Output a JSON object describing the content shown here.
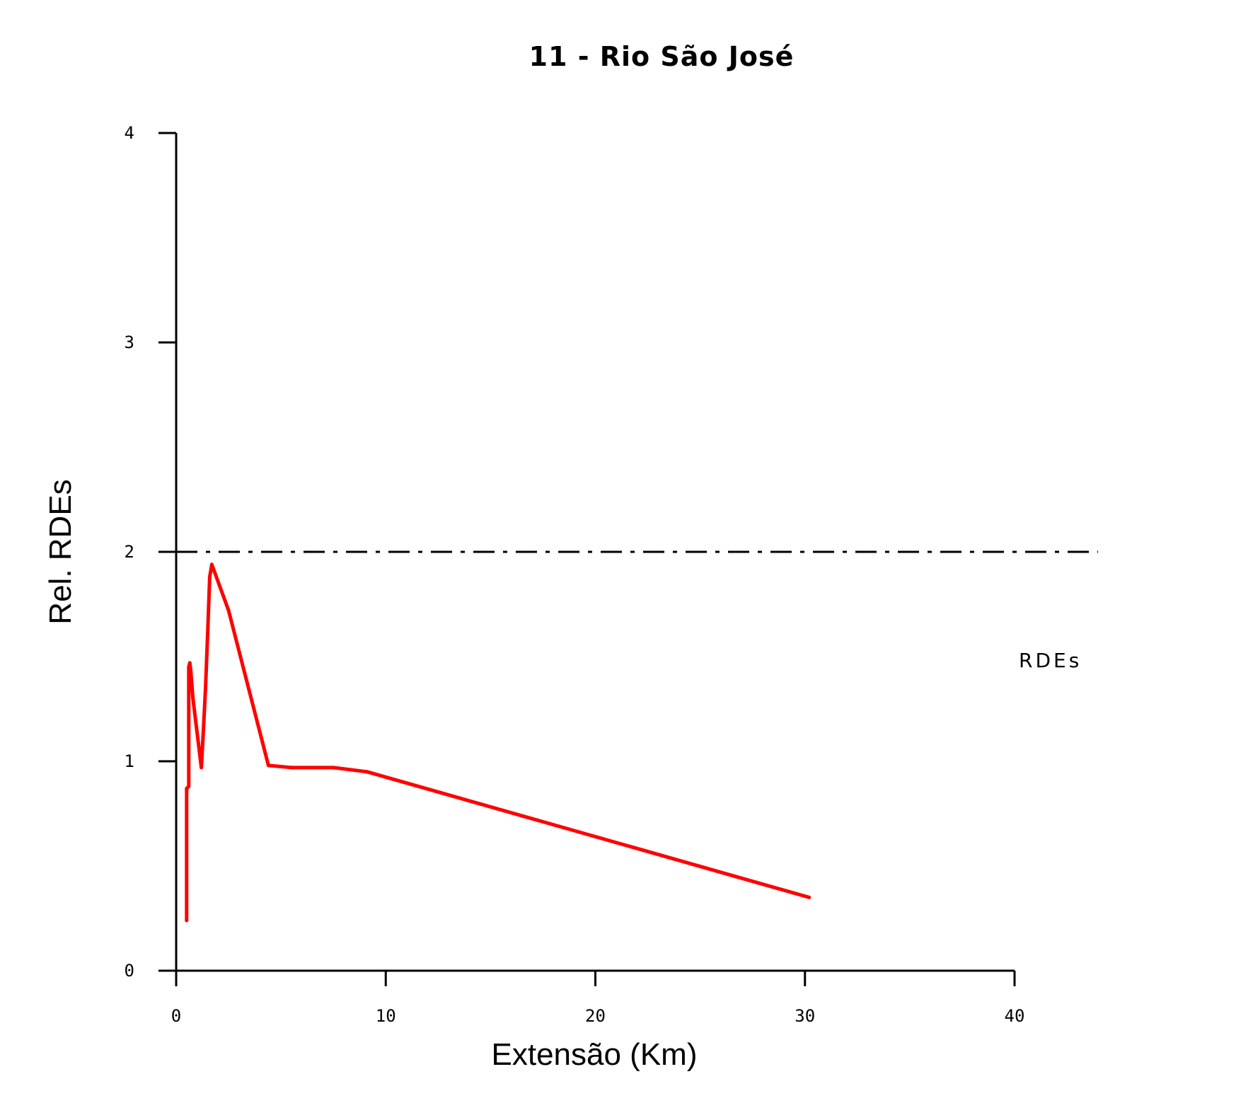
{
  "chart_data": {
    "type": "line",
    "title": "11 - Rio São José",
    "xlabel": "Extensão (Km)",
    "ylabel": "Rel. RDEs",
    "xlim": [
      0,
      40
    ],
    "ylim": [
      0,
      4
    ],
    "x_ticks": [
      "0",
      "10",
      "20",
      "30",
      "40"
    ],
    "y_ticks": [
      "0",
      "1",
      "2",
      "3",
      "4"
    ],
    "grid": false,
    "reference_line": {
      "y": 2,
      "style": "dash-dot",
      "color": "#000000"
    },
    "annotation": "RDEs",
    "series": [
      {
        "color": "#ff0000",
        "x": [
          0.5,
          0.5,
          0.6,
          0.6,
          0.65,
          0.7,
          0.8,
          1.2,
          1.3,
          1.4,
          1.5,
          1.6,
          1.7,
          2.5,
          4.4,
          5.5,
          7.5,
          9.1,
          30.2
        ],
        "y": [
          0.24,
          0.87,
          0.88,
          1.45,
          1.47,
          1.43,
          1.3,
          0.97,
          1.15,
          1.35,
          1.6,
          1.88,
          1.94,
          1.72,
          0.98,
          0.97,
          0.97,
          0.95,
          0.35
        ]
      }
    ]
  }
}
